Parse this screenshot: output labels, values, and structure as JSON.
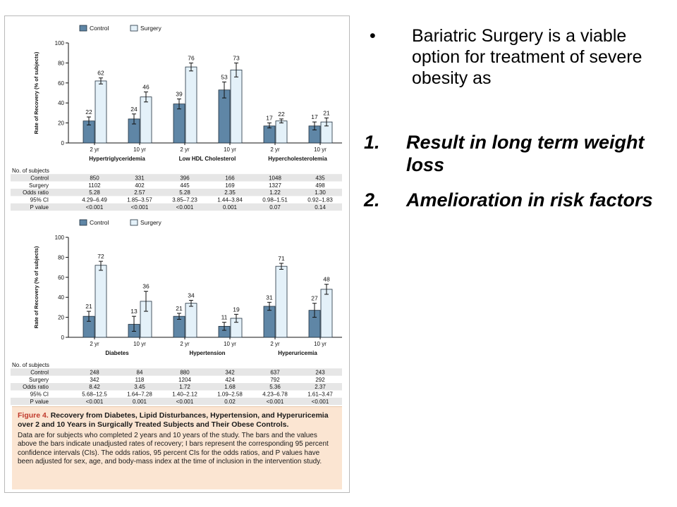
{
  "chart_data": [
    {
      "type": "bar",
      "ylabel": "Rate of Recovery (% of subjects)",
      "ylim": [
        0,
        100
      ],
      "yticks": [
        0,
        20,
        40,
        60,
        80,
        100
      ],
      "legend": [
        "Control",
        "Surgery"
      ],
      "legend_position": "top-left",
      "groups": [
        {
          "name": "Hypertriglyceridemia",
          "categories": [
            "2 yr",
            "10 yr"
          ],
          "control": [
            22,
            24
          ],
          "surgery": [
            62,
            46
          ],
          "control_ci": [
            [
              18,
              26
            ],
            [
              19,
              29
            ]
          ],
          "surgery_ci": [
            [
              59,
              65
            ],
            [
              41,
              51
            ]
          ]
        },
        {
          "name": "Low HDL Cholesterol",
          "categories": [
            "2 yr",
            "10 yr"
          ],
          "control": [
            39,
            53
          ],
          "surgery": [
            76,
            73
          ],
          "control_ci": [
            [
              34,
              44
            ],
            [
              45,
              61
            ]
          ],
          "surgery_ci": [
            [
              72,
              80
            ],
            [
              66,
              80
            ]
          ]
        },
        {
          "name": "Hypercholesterolemia",
          "categories": [
            "2 yr",
            "10 yr"
          ],
          "control": [
            17,
            17
          ],
          "surgery": [
            22,
            21
          ],
          "control_ci": [
            [
              15,
              20
            ],
            [
              13,
              21
            ]
          ],
          "surgery_ci": [
            [
              20,
              24
            ],
            [
              17,
              25
            ]
          ]
        }
      ],
      "table": {
        "header": "No. of subjects",
        "rows": [
          {
            "label": "Control",
            "values": [
              "850",
              "331",
              "396",
              "166",
              "1048",
              "435"
            ]
          },
          {
            "label": "Surgery",
            "values": [
              "1102",
              "402",
              "445",
              "169",
              "1327",
              "498"
            ]
          },
          {
            "label": "Odds ratio",
            "values": [
              "5.28",
              "2.57",
              "5.28",
              "2.35",
              "1.22",
              "1.30"
            ]
          },
          {
            "label": "95% CI",
            "values": [
              "4.29–6.49",
              "1.85–3.57",
              "3.85–7.23",
              "1.44–3.84",
              "0.98–1.51",
              "0.92–1.83"
            ]
          },
          {
            "label": "P value",
            "values": [
              "<0.001",
              "<0.001",
              "<0.001",
              "0.001",
              "0.07",
              "0.14"
            ]
          }
        ]
      }
    },
    {
      "type": "bar",
      "ylabel": "Rate of Recovery (% of subjects)",
      "ylim": [
        0,
        100
      ],
      "yticks": [
        0,
        20,
        40,
        60,
        80,
        100
      ],
      "legend": [
        "Control",
        "Surgery"
      ],
      "legend_position": "top-left",
      "groups": [
        {
          "name": "Diabetes",
          "categories": [
            "2 yr",
            "10 yr"
          ],
          "control": [
            21,
            13
          ],
          "surgery": [
            72,
            36
          ],
          "control_ci": [
            [
              16,
              26
            ],
            [
              6,
              21
            ]
          ],
          "surgery_ci": [
            [
              67,
              76
            ],
            [
              26,
              46
            ]
          ]
        },
        {
          "name": "Hypertension",
          "categories": [
            "2 yr",
            "10 yr"
          ],
          "control": [
            21,
            11
          ],
          "surgery": [
            34,
            19
          ],
          "control_ci": [
            [
              18,
              24
            ],
            [
              7,
              15
            ]
          ],
          "surgery_ci": [
            [
              31,
              37
            ],
            [
              15,
              23
            ]
          ]
        },
        {
          "name": "Hyperuricemia",
          "categories": [
            "2 yr",
            "10 yr"
          ],
          "control": [
            31,
            27
          ],
          "surgery": [
            71,
            48
          ],
          "control_ci": [
            [
              27,
              35
            ],
            [
              20,
              34
            ]
          ],
          "surgery_ci": [
            [
              68,
              74
            ],
            [
              43,
              53
            ]
          ]
        }
      ],
      "table": {
        "header": "No. of subjects",
        "rows": [
          {
            "label": "Control",
            "values": [
              "248",
              "84",
              "880",
              "342",
              "637",
              "243"
            ]
          },
          {
            "label": "Surgery",
            "values": [
              "342",
              "118",
              "1204",
              "424",
              "792",
              "292"
            ]
          },
          {
            "label": "Odds ratio",
            "values": [
              "8.42",
              "3.45",
              "1.72",
              "1.68",
              "5.36",
              "2.37"
            ]
          },
          {
            "label": "95% CI",
            "values": [
              "5.68–12.5",
              "1.64–7.28",
              "1.40–2.12",
              "1.09–2.58",
              "4.23–6.78",
              "1.61–3.47"
            ]
          },
          {
            "label": "P value",
            "values": [
              "<0.001",
              "0.001",
              "<0.001",
              "0.02",
              "<0.001",
              "<0.001"
            ]
          }
        ]
      }
    }
  ],
  "caption": {
    "label": "Figure 4.",
    "title": "Recovery from Diabetes, Lipid Disturbances, Hypertension, and Hyperuricemia over 2 and 10 Years in Surgically Treated Subjects and Their Obese Controls.",
    "body": "Data are for subjects who completed 2 years and 10 years of the study. The bars and the values above the bars indicate unadjusted rates of recovery; I bars represent the corresponding 95 percent confidence intervals (CIs). The odds ratios, 95 percent CIs for the odds ratios, and P values have been adjusted for sex, age, and body-mass index at the time of inclusion in the intervention study."
  },
  "slide": {
    "bullet_symbol": "•",
    "bullet": "Bariatric Surgery is a viable option for treatment of severe obesity as",
    "items": [
      {
        "num": "1.",
        "text": "Result in long term weight loss"
      },
      {
        "num": "2.",
        "text": "Amelioration in risk factors"
      }
    ]
  },
  "colors": {
    "control": "#5f86a6",
    "surgery": "#e4f1f9",
    "caption_bg": "#fbe5d2",
    "figure_label": "#c0392b"
  }
}
